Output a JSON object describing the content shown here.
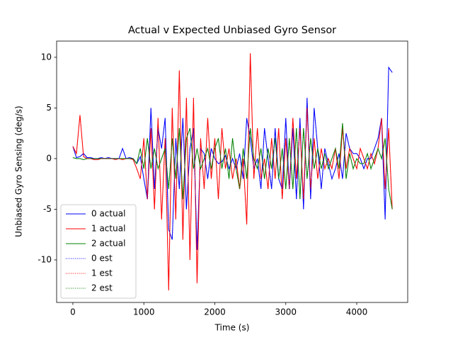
{
  "chart_data": {
    "type": "line",
    "title": "Actual v Expected Unbiased Gyro Sensor",
    "xlabel": "Time (s)",
    "ylabel": "Unbiased Gyro Sensing (deg/s)",
    "x": [
      0,
      50,
      100,
      150,
      200,
      250,
      300,
      350,
      400,
      450,
      500,
      550,
      600,
      650,
      700,
      750,
      800,
      850,
      900,
      950,
      1000,
      1050,
      1100,
      1150,
      1200,
      1250,
      1300,
      1350,
      1400,
      1450,
      1500,
      1550,
      1600,
      1650,
      1700,
      1750,
      1800,
      1850,
      1900,
      1950,
      2000,
      2050,
      2100,
      2150,
      2200,
      2250,
      2300,
      2350,
      2400,
      2450,
      2500,
      2550,
      2600,
      2650,
      2700,
      2750,
      2800,
      2850,
      2900,
      2950,
      3000,
      3050,
      3100,
      3150,
      3200,
      3250,
      3300,
      3350,
      3400,
      3450,
      3500,
      3550,
      3600,
      3650,
      3700,
      3750,
      3800,
      3850,
      3900,
      3950,
      4000,
      4050,
      4100,
      4150,
      4200,
      4250,
      4300,
      4350,
      4400,
      4450,
      4500
    ],
    "xlim": [
      -229,
      4718
    ],
    "ylim": [
      -14.2,
      11.6
    ],
    "xticks": [
      0,
      1000,
      2000,
      3000,
      4000
    ],
    "yticks": [
      -10,
      -5,
      0,
      5,
      10
    ],
    "legend": "lower left",
    "series": [
      {
        "name": "0 actual",
        "color": "#0000ff",
        "linestyle": "solid",
        "values": [
          1.2,
          0.1,
          0.2,
          0.5,
          0.1,
          0.1,
          0,
          0,
          0.1,
          0,
          0.1,
          0,
          0,
          0,
          1,
          0,
          0.1,
          0,
          -0.5,
          0.2,
          -2,
          -4,
          5,
          -3,
          3,
          1,
          4,
          -7,
          -8,
          2,
          -3,
          4,
          -5,
          1,
          3,
          -9,
          1,
          0.5,
          -2,
          1,
          0,
          -0.5,
          -0.3,
          0.3,
          -1,
          0,
          -1,
          0.5,
          -2,
          4,
          2,
          -1,
          0,
          -3,
          3,
          0,
          -3,
          3,
          -2,
          -3,
          4,
          -3,
          3,
          -4,
          4,
          -5,
          6,
          -4,
          5,
          1,
          -3,
          1,
          -0.5,
          -2,
          -1,
          0.5,
          -2,
          2.5,
          1,
          0.5,
          0.5,
          0,
          -1,
          0,
          0,
          1,
          2,
          4,
          -6,
          9,
          8.5
        ]
      },
      {
        "name": "1 actual",
        "color": "#ff0000",
        "linestyle": "solid",
        "values": [
          1.2,
          0.5,
          4.3,
          0.2,
          0,
          0,
          -0.1,
          -0.1,
          0,
          0,
          0,
          0,
          -0.1,
          0,
          -0.1,
          0,
          0,
          -0.1,
          -1,
          -2,
          2,
          -4,
          3,
          -5,
          4,
          -6,
          2,
          -13,
          5,
          -6,
          8.7,
          -8,
          6,
          -10,
          6,
          -12.3,
          2,
          -3,
          4,
          -2,
          2,
          -4,
          3,
          -1,
          1,
          -2,
          0,
          -3,
          0,
          -6.5,
          10.4,
          -2,
          3,
          -2,
          0,
          -3,
          2,
          -2,
          3,
          -4,
          2,
          -3,
          4,
          -2,
          3,
          -4,
          5,
          -3,
          2,
          -2,
          1,
          -1,
          0,
          -1,
          1,
          -2,
          3,
          -1,
          1,
          0,
          -1,
          1,
          0,
          -1,
          0.5,
          -0.5,
          1,
          4,
          -3,
          3,
          -5
        ]
      },
      {
        "name": "2 actual",
        "color": "#008000",
        "linestyle": "solid",
        "values": [
          0.1,
          0,
          0,
          -0.1,
          0,
          0,
          0,
          0,
          0,
          0,
          0,
          0,
          0,
          0,
          0,
          0,
          0,
          0,
          -0.5,
          1,
          -1,
          2,
          -1,
          1,
          -1,
          0,
          1,
          -3,
          2,
          -2,
          3,
          -4,
          2,
          3,
          -1,
          1,
          -1,
          0,
          1,
          -1,
          1,
          2,
          -1,
          1,
          -2,
          2,
          -1,
          -3,
          1,
          -2,
          3,
          0,
          -1,
          1,
          -2,
          1,
          -1,
          2,
          -2,
          1,
          -3,
          2,
          -3,
          3,
          -4,
          3,
          -2,
          2,
          -1,
          1,
          -1,
          0.5,
          -1,
          0,
          1,
          -1,
          3.5,
          -2,
          0.5,
          -1,
          0,
          -0.5,
          -0.5,
          0.5,
          -1,
          0,
          1,
          0,
          2,
          -3,
          -5
        ]
      },
      {
        "name": "0 est",
        "color": "#0000ff",
        "linestyle": "dotted",
        "values": [
          1.2,
          0.1,
          0.2,
          0.5,
          0.1,
          0.1,
          0,
          0,
          0.1,
          0,
          0.1,
          0,
          0,
          0,
          1,
          0,
          0.1,
          0,
          -0.5,
          0.2,
          -2,
          -4,
          5,
          -3,
          3,
          1,
          4,
          -7,
          -8,
          2,
          -3,
          4,
          -5,
          1,
          3,
          -9,
          1,
          0.5,
          -2,
          1,
          0,
          -0.5,
          -0.3,
          0.3,
          -1,
          0,
          -1,
          0.5,
          -2,
          4,
          2,
          -1,
          0,
          -3,
          3,
          0,
          -3,
          3,
          -2,
          -3,
          4,
          -3,
          3,
          -4,
          4,
          -5,
          6,
          -4,
          5,
          1,
          -3,
          1,
          -0.5,
          -2,
          -1,
          0.5,
          -2,
          2.5,
          1,
          0.5,
          0.5,
          0,
          -1,
          0,
          0,
          1,
          2,
          4,
          -6,
          9,
          8.5
        ]
      },
      {
        "name": "1 est",
        "color": "#ff0000",
        "linestyle": "dotted",
        "values": [
          1.2,
          0.5,
          4.3,
          0.2,
          0,
          0,
          -0.1,
          -0.1,
          0,
          0,
          0,
          0,
          -0.1,
          0,
          -0.1,
          0,
          0,
          -0.1,
          -1,
          -2,
          2,
          -4,
          3,
          -5,
          4,
          -6,
          2,
          -13,
          5,
          -6,
          8.7,
          -8,
          6,
          -10,
          6,
          -12.3,
          2,
          -3,
          4,
          -2,
          2,
          -4,
          3,
          -1,
          1,
          -2,
          0,
          -3,
          0,
          -6.5,
          10.4,
          -2,
          3,
          -2,
          0,
          -3,
          2,
          -2,
          3,
          -4,
          2,
          -3,
          4,
          -2,
          3,
          -4,
          5,
          -3,
          2,
          -2,
          1,
          -1,
          0,
          -1,
          1,
          -2,
          3,
          -1,
          1,
          0,
          -1,
          1,
          0,
          -1,
          0.5,
          -0.5,
          1,
          4,
          -3,
          3,
          -5
        ]
      },
      {
        "name": "2 est",
        "color": "#008000",
        "linestyle": "dotted",
        "values": [
          0.1,
          0,
          0,
          -0.1,
          0,
          0,
          0,
          0,
          0,
          0,
          0,
          0,
          0,
          0,
          0,
          0,
          0,
          0,
          -0.5,
          1,
          -1,
          2,
          -1,
          1,
          -1,
          0,
          1,
          -3,
          2,
          -2,
          3,
          -4,
          2,
          3,
          -1,
          1,
          -1,
          0,
          1,
          -1,
          1,
          2,
          -1,
          1,
          -2,
          2,
          -1,
          -3,
          1,
          -2,
          3,
          0,
          -1,
          1,
          -2,
          1,
          -1,
          2,
          -2,
          1,
          -3,
          2,
          -3,
          3,
          -4,
          3,
          -2,
          2,
          -1,
          1,
          -1,
          0.5,
          -1,
          0,
          1,
          -1,
          3.5,
          -2,
          0.5,
          -1,
          0,
          -0.5,
          -0.5,
          0.5,
          -1,
          0,
          1,
          0,
          2,
          -3,
          -5
        ]
      }
    ]
  }
}
